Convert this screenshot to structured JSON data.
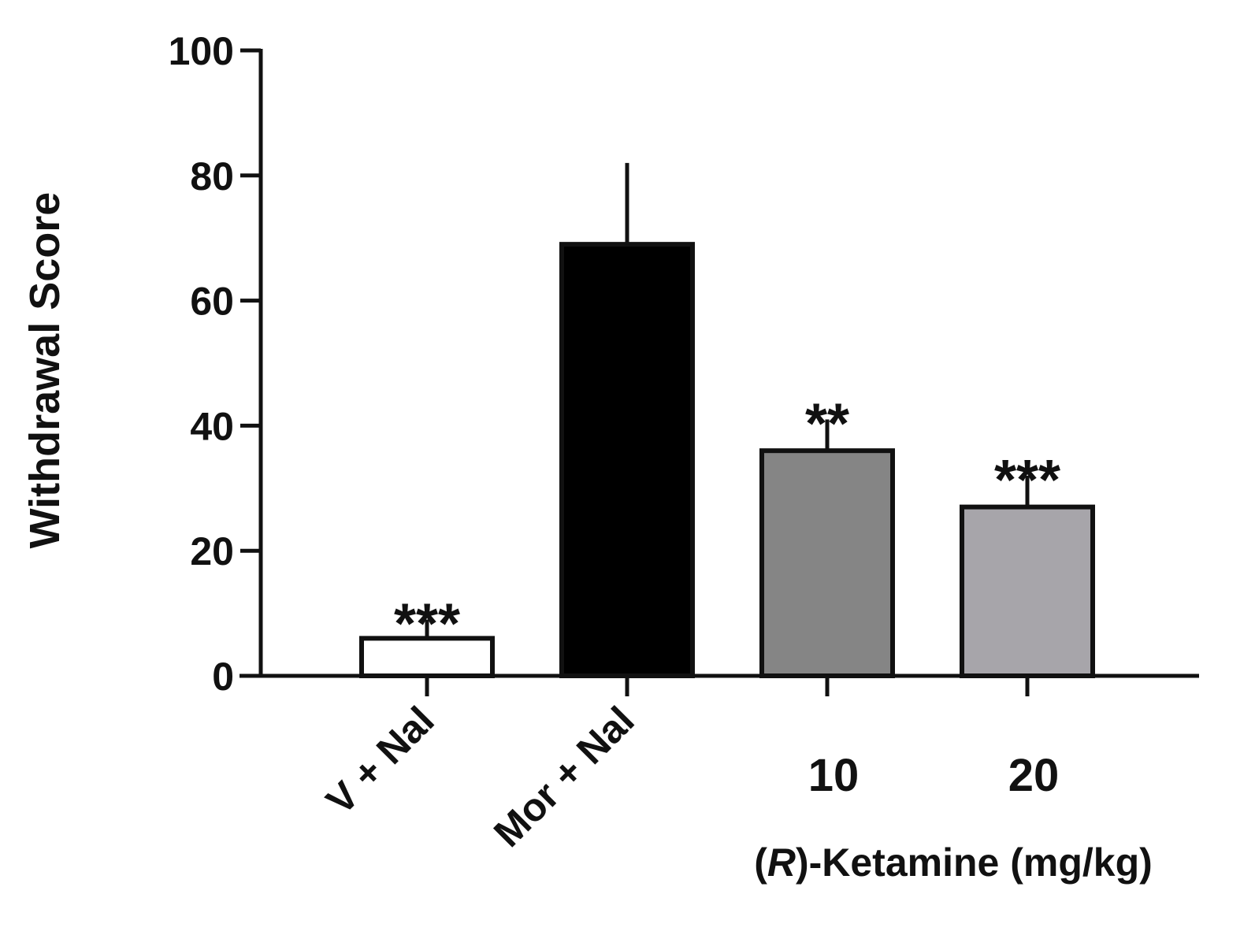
{
  "chart_data": {
    "type": "bar",
    "title": "",
    "xlabel": "",
    "ylabel": "Withdrawal Score",
    "ylim": [
      0,
      100
    ],
    "yticks": [
      "0",
      "20",
      "40",
      "60",
      "80",
      "100"
    ],
    "categories": [
      "V + Nal",
      "Mor + Nal",
      "10",
      "20"
    ],
    "values": [
      6,
      69,
      36,
      27
    ],
    "errors": [
      3,
      13,
      5,
      5
    ],
    "significance": [
      "***",
      "",
      "**",
      "***"
    ],
    "bar_colors": [
      "#ffffff",
      "#000000",
      "#858585",
      "#a7a5aa"
    ],
    "category_orientation": [
      "rotated",
      "rotated",
      "horizontal",
      "horizontal"
    ],
    "group_label": {
      "prefix": "(",
      "italic": "R",
      "suffix": ")-Ketamine (mg/kg)"
    },
    "grid": false
  }
}
